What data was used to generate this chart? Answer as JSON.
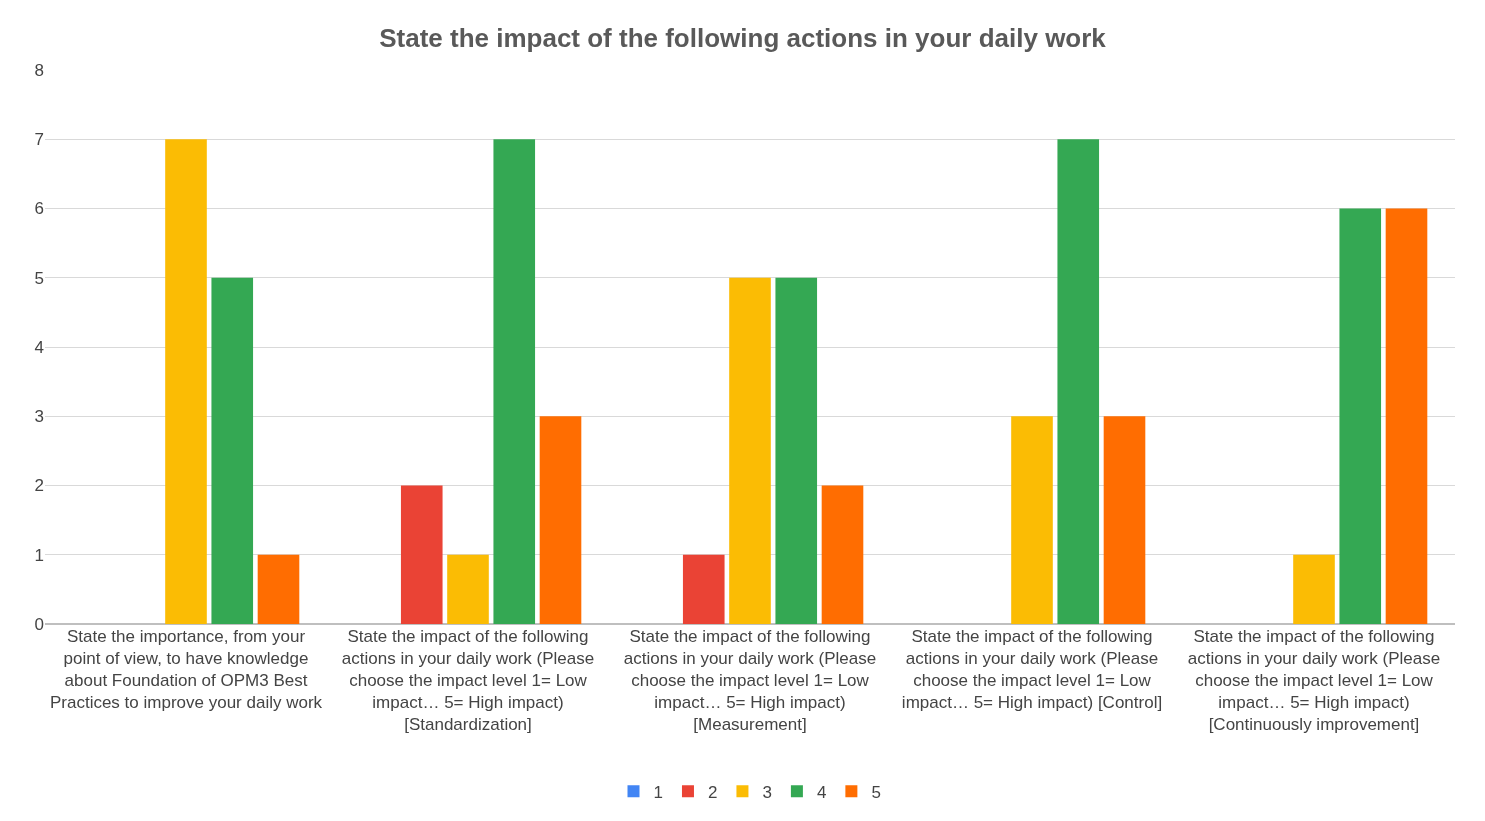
{
  "chart_data": {
    "type": "bar",
    "title": "State the impact of the following actions in your daily work",
    "categories": [
      "State the importance, from your point of view, to have knowledge about Foundation of OPM3 Best Practices to improve your daily work",
      "State the impact of the following actions in your daily work (Please choose the impact level 1= Low impact… 5= High impact) [Standardization]",
      "State the impact of the following actions in your daily work (Please choose the impact level 1= Low impact… 5= High impact) [Measurement]",
      "State the impact of the following actions in your daily work (Please choose the impact level 1= Low impact… 5= High impact) [Control]",
      "State the impact of the following actions in your daily work (Please choose the impact level 1= Low impact… 5= High impact) [Continuously improvement]"
    ],
    "series": [
      {
        "name": "1",
        "color": "#4285f4",
        "values": [
          0,
          0,
          0,
          0,
          0
        ]
      },
      {
        "name": "2",
        "color": "#ea4335",
        "values": [
          0,
          2,
          1,
          0,
          0
        ]
      },
      {
        "name": "3",
        "color": "#fbbc04",
        "values": [
          7,
          1,
          5,
          3,
          1
        ]
      },
      {
        "name": "4",
        "color": "#34a853",
        "values": [
          5,
          7,
          5,
          7,
          6
        ]
      },
      {
        "name": "5",
        "color": "#ff6d01",
        "values": [
          1,
          3,
          2,
          3,
          6
        ]
      }
    ],
    "ylim": [
      0,
      8
    ],
    "yticks": [
      0,
      1,
      2,
      3,
      4,
      5,
      6,
      7,
      8
    ],
    "grid": "y",
    "legend": "bottom"
  }
}
